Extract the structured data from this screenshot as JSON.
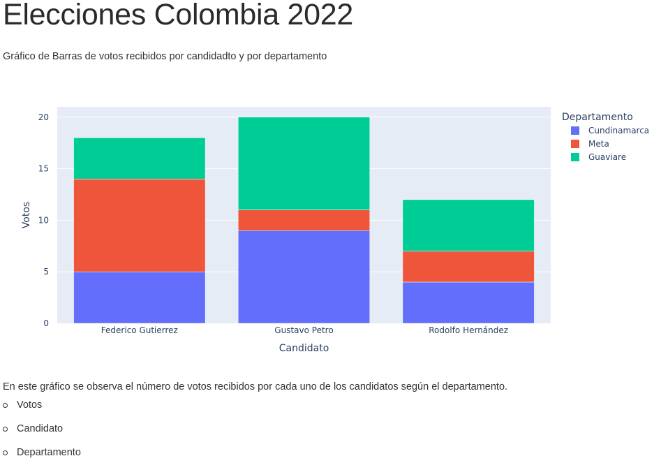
{
  "page": {
    "title": "Elecciones Colombia 2022",
    "subtitle": "Gráfico de Barras de votos recibidos por candidadto y por departamento",
    "description": "En este gráfico se observa el número de votos recibidos por cada uno de los candidatos según el departamento.",
    "variables": [
      "Votos",
      "Candidato",
      "Departamento"
    ]
  },
  "chart_data": {
    "type": "bar",
    "stacked": true,
    "categories": [
      "Federico Gutierrez",
      "Gustavo Petro",
      "Rodolfo Hernández"
    ],
    "series": [
      {
        "name": "Cundinamarca",
        "color": "#636efa",
        "values": [
          5,
          9,
          4
        ]
      },
      {
        "name": "Meta",
        "color": "#ef553b",
        "values": [
          9,
          2,
          3
        ]
      },
      {
        "name": "Guaviare",
        "color": "#00cc96",
        "values": [
          4,
          9,
          5
        ]
      }
    ],
    "xlabel": "Candidato",
    "ylabel": "Votos",
    "ylim": [
      0,
      21
    ],
    "yticks": [
      0,
      5,
      10,
      15,
      20
    ],
    "legend_title": "Departamento",
    "legend_position": "top-right",
    "grid": true,
    "plot_background": "#e5ecf6"
  }
}
